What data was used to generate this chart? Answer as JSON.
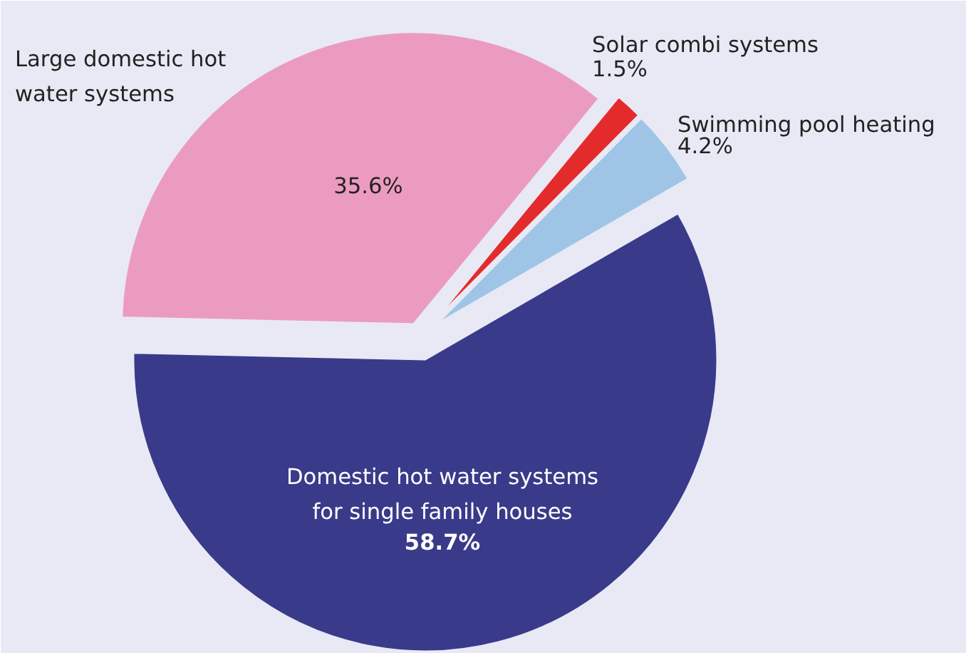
{
  "chart_data": {
    "type": "pie",
    "categories": [
      "Large domestic hot water systems",
      "Solar combi systems",
      "Swimming pool heating",
      "Domestic hot water systems for single family houses"
    ],
    "values": [
      35.6,
      1.5,
      4.2,
      58.7
    ],
    "colors": [
      "#ec9bc0",
      "#e32b2b",
      "#9fc5e6",
      "#3a3a8a"
    ],
    "value_labels": [
      "35.6%",
      "1.5%",
      "4.2%",
      "58.7%"
    ]
  }
}
